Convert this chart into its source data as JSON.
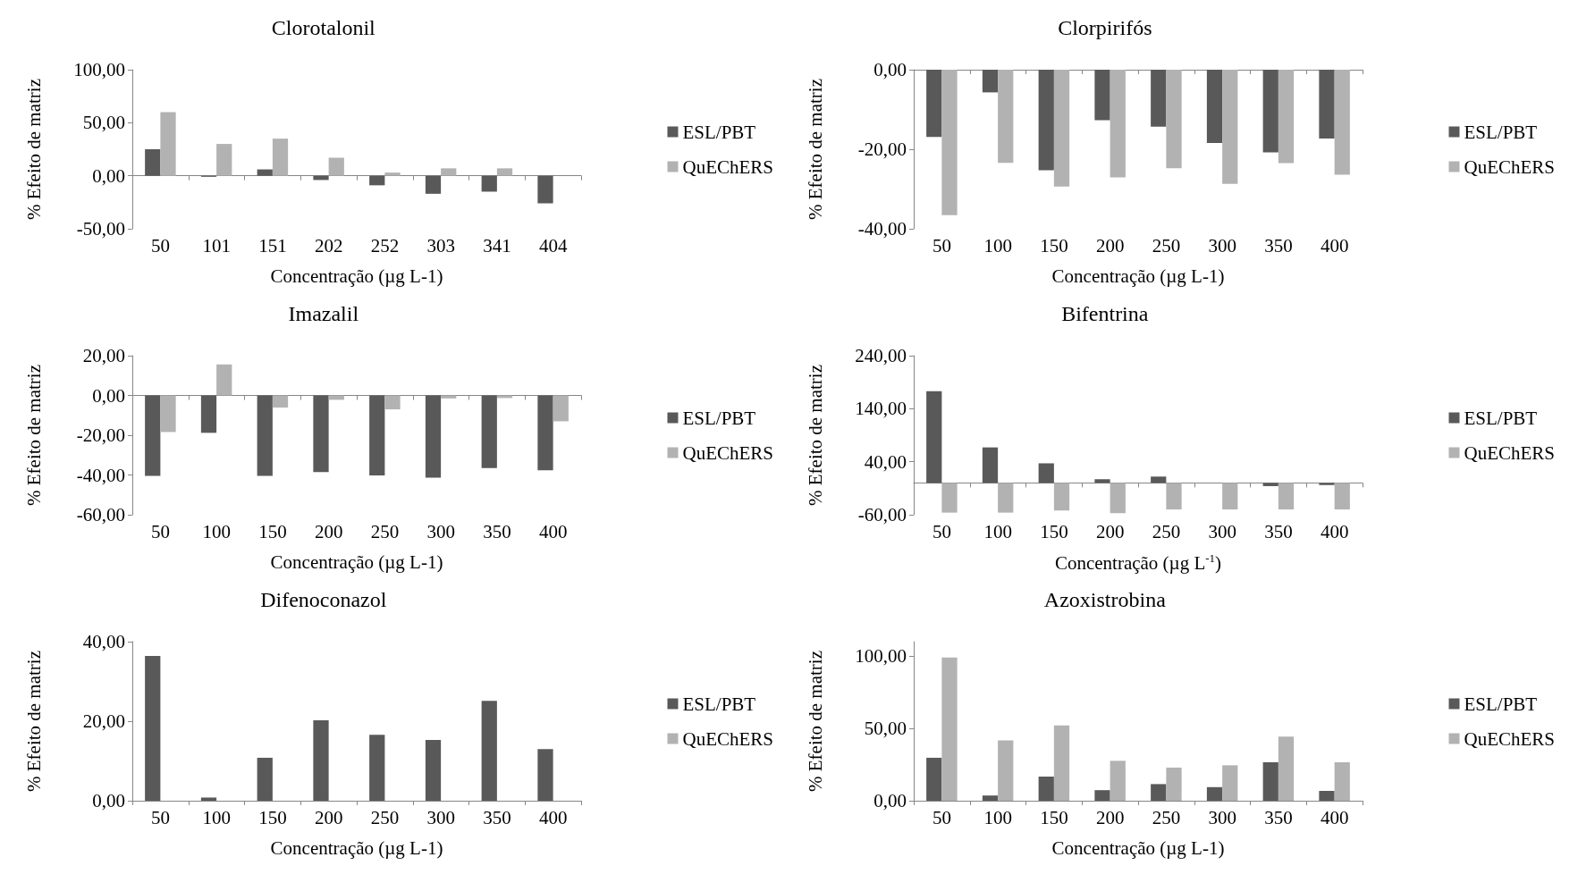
{
  "chart_data": [
    {
      "type": "bar",
      "title": "Clorotalonil",
      "xlabel": "Concentração (µg L-1)",
      "ylabel": "% Efeito de matriz",
      "categories": [
        "50",
        "101",
        "151",
        "202",
        "252",
        "303",
        "341",
        "404"
      ],
      "series": [
        {
          "name": "ESL/PBT",
          "color": "#595959",
          "values": [
            25,
            -1,
            6,
            -4,
            -9,
            -17,
            -15,
            -26
          ]
        },
        {
          "name": "QuEChERS",
          "color": "#b2b2b2",
          "values": [
            60,
            30,
            35,
            17,
            3,
            7,
            7,
            null
          ]
        }
      ],
      "ylim": [
        -50,
        100
      ],
      "yticks": [
        {
          "value": -50,
          "label": "-50,00"
        },
        {
          "value": 0,
          "label": "0,00"
        },
        {
          "value": 50,
          "label": "50,00"
        },
        {
          "value": 100,
          "label": "100,00"
        }
      ],
      "legend": "right"
    },
    {
      "type": "bar",
      "title": "Clorpirifós",
      "xlabel": "Concentração (µg L-1)",
      "ylabel": "% Efeito de matriz",
      "categories": [
        "50",
        "100",
        "150",
        "200",
        "250",
        "300",
        "350",
        "400"
      ],
      "series": [
        {
          "name": "ESL/PBT",
          "color": "#595959",
          "values": [
            -16.9,
            -5.7,
            -25.3,
            -12.7,
            -14.3,
            -18.4,
            -20.8,
            -17.3
          ]
        },
        {
          "name": "QuEChERS",
          "color": "#b2b2b2",
          "values": [
            -36.6,
            -23.4,
            -29.4,
            -27.1,
            -24.8,
            -28.7,
            -23.5,
            -26.4
          ]
        }
      ],
      "ylim": [
        -40,
        0
      ],
      "yticks": [
        {
          "value": -40,
          "label": "-40,00"
        },
        {
          "value": -20,
          "label": "-20,00"
        },
        {
          "value": 0,
          "label": "0,00"
        }
      ],
      "grid": false,
      "legend": "right"
    },
    {
      "type": "bar",
      "title": "Imazalil",
      "xlabel": "Concentração (µg L-1)",
      "ylabel": "% Efeito de matriz",
      "categories": [
        "50",
        "100",
        "150",
        "200",
        "250",
        "300",
        "350",
        "400"
      ],
      "series": [
        {
          "name": "ESL/PBT",
          "color": "#595959",
          "values": [
            -40.4,
            -18.8,
            -40.4,
            -38.5,
            -40.2,
            -41.3,
            -36.5,
            -37.6
          ]
        },
        {
          "name": "QuEChERS",
          "color": "#b2b2b2",
          "values": [
            -18.4,
            15.6,
            -6.1,
            -2.2,
            -7,
            -1.5,
            -1.3,
            -13
          ]
        }
      ],
      "ylim": [
        -60,
        20
      ],
      "yticks": [
        {
          "value": -60,
          "label": "-60,00"
        },
        {
          "value": -40,
          "label": "-40,00"
        },
        {
          "value": -20,
          "label": "-20,00"
        },
        {
          "value": 0,
          "label": "0,00"
        },
        {
          "value": 20,
          "label": "20,00"
        }
      ],
      "legend": "right"
    },
    {
      "type": "bar",
      "title": "Bifentrina",
      "xlabel": "Concentração (µg L$^{-1}$)",
      "ylabel": "% Efeito de matriz",
      "categories": [
        "50",
        "100",
        "150",
        "200",
        "250",
        "300",
        "350",
        "400"
      ],
      "series": [
        {
          "name": "ESL/PBT",
          "color": "#595959",
          "values": [
            173,
            67,
            37,
            7,
            12,
            0,
            -6,
            -4
          ]
        },
        {
          "name": "QuEChERS",
          "color": "#b2b2b2",
          "values": [
            -56,
            -56,
            -52,
            -57,
            -50,
            -50,
            -50,
            -50
          ]
        }
      ],
      "ylim": [
        -60,
        240
      ],
      "yticks": [
        {
          "value": -60,
          "label": "-60,00"
        },
        {
          "value": 40,
          "label": "40,00"
        },
        {
          "value": 140,
          "label": "140,00"
        },
        {
          "value": 240,
          "label": "240,00"
        }
      ],
      "grid": false,
      "legend": "right"
    },
    {
      "type": "bar",
      "title": "Difenoconazol",
      "xlabel": "Concentração (µg L-1)",
      "ylabel": "% Efeito de matriz",
      "categories": [
        "50",
        "100",
        "150",
        "200",
        "250",
        "300",
        "350",
        "400"
      ],
      "series": [
        {
          "name": "ESL/PBT",
          "color": "#595959",
          "values": [
            36.4,
            0.8,
            10.8,
            20.2,
            16.6,
            15.3,
            25.1,
            13
          ]
        },
        {
          "name": "QuEChERS",
          "color": "#b2b2b2",
          "values": [
            null,
            null,
            null,
            null,
            null,
            null,
            null,
            null
          ]
        }
      ],
      "ylim": [
        0,
        40
      ],
      "yticks": [
        {
          "value": 0,
          "label": "0,00"
        },
        {
          "value": 20,
          "label": "20,00"
        },
        {
          "value": 40,
          "label": "40,00"
        }
      ],
      "grid": false,
      "legend": "right"
    },
    {
      "type": "bar",
      "title": "Azoxistrobina",
      "xlabel": "Concentração (µg L-1)",
      "ylabel": "% Efeito de matriz",
      "categories": [
        "50",
        "100",
        "150",
        "200",
        "250",
        "300",
        "350",
        "400"
      ],
      "series": [
        {
          "name": "ESL/PBT",
          "color": "#595959",
          "values": [
            29.7,
            3.6,
            16.7,
            7.3,
            11.5,
            9.4,
            26.6,
            6.8
          ]
        },
        {
          "name": "QuEChERS",
          "color": "#b2b2b2",
          "values": [
            99,
            41.7,
            52.1,
            27.6,
            22.9,
            24.5,
            44.3,
            26.6
          ]
        }
      ],
      "ylim": [
        0,
        110
      ],
      "yticks": [
        {
          "value": 0,
          "label": "0,00"
        },
        {
          "value": 50,
          "label": "50,00"
        },
        {
          "value": 100,
          "label": "100,00"
        }
      ],
      "grid": false,
      "legend": "right"
    }
  ]
}
